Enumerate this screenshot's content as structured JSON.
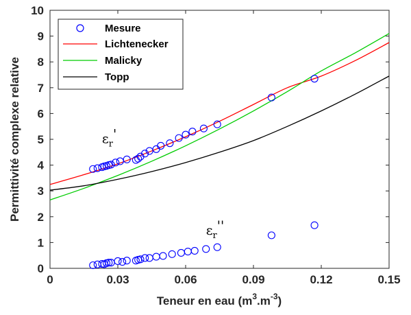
{
  "chart_data": {
    "type": "scatter",
    "xlabel": "Teneur en eau (m",
    "xlabel_sup1": "3",
    "xlabel_mid": ".m",
    "xlabel_sup2": "-3",
    "xlabel_end": ")",
    "ylabel": "Permittivité complexe relative",
    "xlim": [
      0,
      0.15
    ],
    "ylim": [
      0,
      10
    ],
    "x_ticks": [
      0,
      0.03,
      0.06,
      0.09,
      0.12,
      0.15
    ],
    "x_tick_labels": [
      "0",
      "0.03",
      "0.06",
      "0.09",
      "0.12",
      "0.15"
    ],
    "y_ticks": [
      0,
      1,
      2,
      3,
      4,
      5,
      6,
      7,
      8,
      9,
      10
    ],
    "y_tick_labels": [
      "0",
      "1",
      "2",
      "3",
      "4",
      "5",
      "6",
      "7",
      "8",
      "9",
      "10"
    ],
    "grid": false,
    "legend_position": "top-left",
    "series": [
      {
        "name": "Mesure",
        "kind": "markers",
        "color": "#0000ff",
        "points_real": [
          [
            0.019,
            3.85
          ],
          [
            0.021,
            3.88
          ],
          [
            0.023,
            3.92
          ],
          [
            0.024,
            3.95
          ],
          [
            0.025,
            3.97
          ],
          [
            0.026,
            4.0
          ],
          [
            0.027,
            4.02
          ],
          [
            0.029,
            4.1
          ],
          [
            0.031,
            4.15
          ],
          [
            0.034,
            4.22
          ],
          [
            0.038,
            4.2
          ],
          [
            0.039,
            4.25
          ],
          [
            0.04,
            4.33
          ],
          [
            0.042,
            4.45
          ],
          [
            0.044,
            4.55
          ],
          [
            0.047,
            4.62
          ],
          [
            0.049,
            4.75
          ],
          [
            0.053,
            4.85
          ],
          [
            0.057,
            5.05
          ],
          [
            0.06,
            5.18
          ],
          [
            0.063,
            5.3
          ],
          [
            0.068,
            5.42
          ],
          [
            0.074,
            5.58
          ],
          [
            0.098,
            6.62
          ],
          [
            0.117,
            7.35
          ]
        ],
        "points_imag": [
          [
            0.019,
            0.12
          ],
          [
            0.021,
            0.15
          ],
          [
            0.023,
            0.17
          ],
          [
            0.024,
            0.16
          ],
          [
            0.025,
            0.2
          ],
          [
            0.026,
            0.22
          ],
          [
            0.027,
            0.22
          ],
          [
            0.03,
            0.28
          ],
          [
            0.032,
            0.25
          ],
          [
            0.034,
            0.3
          ],
          [
            0.038,
            0.3
          ],
          [
            0.039,
            0.33
          ],
          [
            0.04,
            0.35
          ],
          [
            0.042,
            0.4
          ],
          [
            0.044,
            0.4
          ],
          [
            0.047,
            0.45
          ],
          [
            0.05,
            0.48
          ],
          [
            0.054,
            0.55
          ],
          [
            0.058,
            0.6
          ],
          [
            0.061,
            0.65
          ],
          [
            0.064,
            0.68
          ],
          [
            0.069,
            0.75
          ],
          [
            0.074,
            0.82
          ],
          [
            0.098,
            1.28
          ],
          [
            0.117,
            1.67
          ]
        ]
      },
      {
        "name": "Lichtenecker",
        "kind": "line",
        "color": "#ff0000",
        "x": [
          0,
          0.015,
          0.03,
          0.045,
          0.06,
          0.075,
          0.09,
          0.105,
          0.12,
          0.135,
          0.15
        ],
        "y": [
          3.25,
          3.63,
          4.05,
          4.55,
          5.1,
          5.7,
          6.35,
          7.0,
          7.45,
          8.05,
          8.75
        ]
      },
      {
        "name": "Malicky",
        "kind": "line",
        "color": "#00cc00",
        "x": [
          0,
          0.015,
          0.03,
          0.045,
          0.06,
          0.075,
          0.09,
          0.105,
          0.12,
          0.135,
          0.15
        ],
        "y": [
          2.65,
          3.1,
          3.6,
          4.15,
          4.75,
          5.4,
          6.1,
          6.85,
          7.65,
          8.35,
          9.1
        ]
      },
      {
        "name": "Topp",
        "kind": "line",
        "color": "#000000",
        "x": [
          0,
          0.015,
          0.03,
          0.045,
          0.06,
          0.075,
          0.09,
          0.105,
          0.12,
          0.135,
          0.15
        ],
        "y": [
          3.03,
          3.2,
          3.45,
          3.75,
          4.1,
          4.5,
          4.95,
          5.5,
          6.1,
          6.75,
          7.45
        ]
      }
    ],
    "annotations": [
      {
        "base": "ε",
        "sub": "r",
        "mark": "'",
        "x": 0.023,
        "y": 4.85
      },
      {
        "base": "ε",
        "sub": "r",
        "mark": "''",
        "x": 0.069,
        "y": 1.3
      }
    ]
  }
}
